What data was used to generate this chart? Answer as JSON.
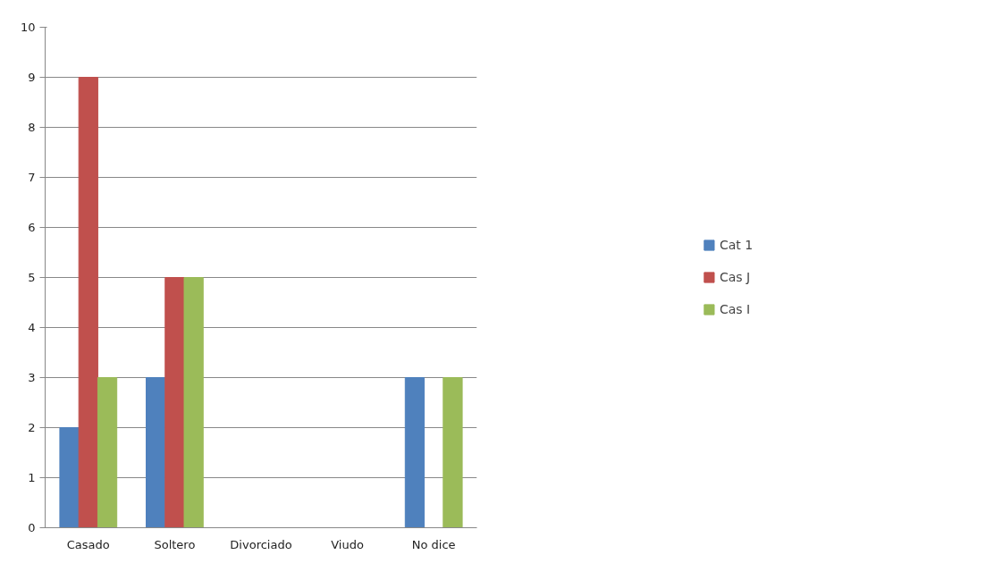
{
  "chart_data": {
    "type": "bar",
    "categories": [
      "Casado",
      "Soltero",
      "Divorciado",
      "Viudo",
      "No dice"
    ],
    "series": [
      {
        "name": "Cat 1",
        "color": "#4f81bd",
        "values": [
          2,
          3,
          0,
          0,
          3
        ]
      },
      {
        "name": "Cas J",
        "color": "#c0504d",
        "values": [
          9,
          5,
          0,
          0,
          0
        ]
      },
      {
        "name": "Cas I",
        "color": "#9bbb59",
        "values": [
          3,
          5,
          0,
          0,
          3
        ]
      }
    ],
    "ylim": [
      0,
      10
    ],
    "yticks": [
      0,
      1,
      2,
      3,
      4,
      5,
      6,
      7,
      8,
      9,
      10
    ],
    "grid": "y",
    "legend": "right"
  }
}
